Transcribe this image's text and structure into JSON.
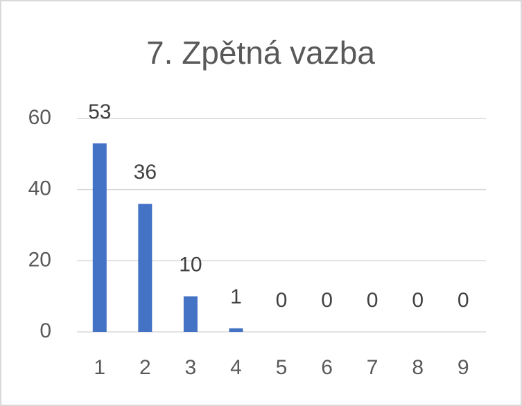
{
  "chart_data": {
    "type": "bar",
    "title": "7. Zpětná vazba",
    "categories": [
      "1",
      "2",
      "3",
      "4",
      "5",
      "6",
      "7",
      "8",
      "9"
    ],
    "values": [
      53,
      36,
      10,
      1,
      0,
      0,
      0,
      0,
      0
    ],
    "color": "#4472c4",
    "ylim": [
      0,
      60
    ],
    "yticks": [
      0,
      20,
      40,
      60
    ],
    "grid": true,
    "data_labels": true
  }
}
